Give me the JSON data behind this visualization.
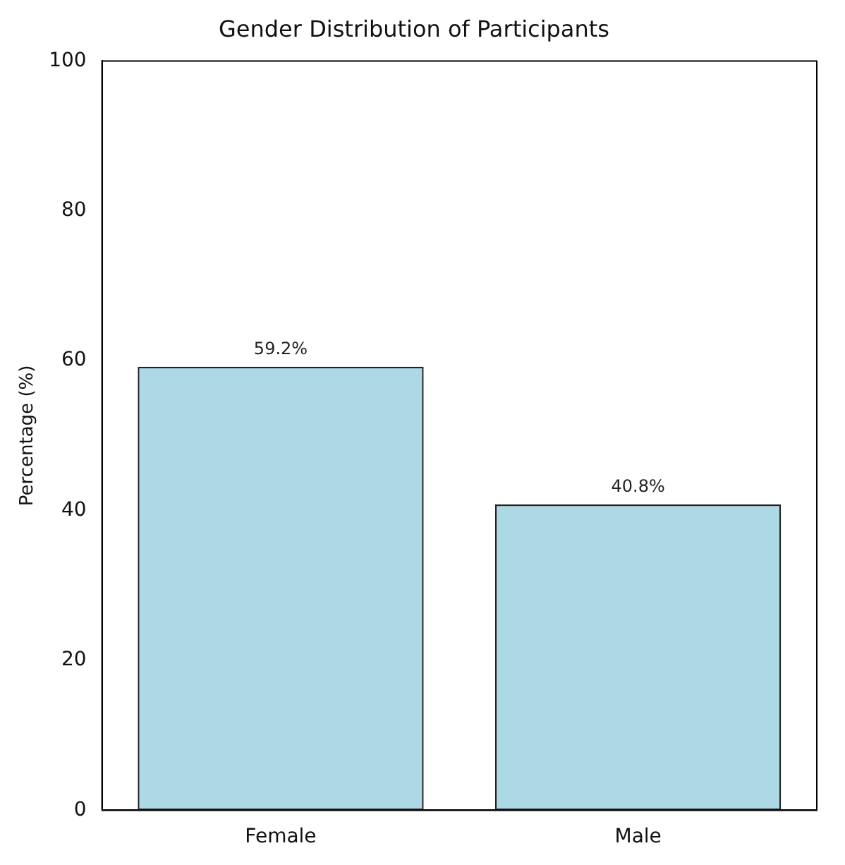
{
  "chart_data": {
    "type": "bar",
    "title": "Gender Distribution of Participants",
    "ylabel": "Percentage (%)",
    "categories": [
      "Female",
      "Male"
    ],
    "values": [
      59.2,
      40.8
    ],
    "color": "#add8e6",
    "value_labels": [
      "59.2%",
      "40.8%"
    ],
    "ylim": [
      0,
      100
    ],
    "yticks": [
      0,
      20,
      40,
      60,
      80,
      100
    ],
    "grid": false,
    "legend": false
  }
}
